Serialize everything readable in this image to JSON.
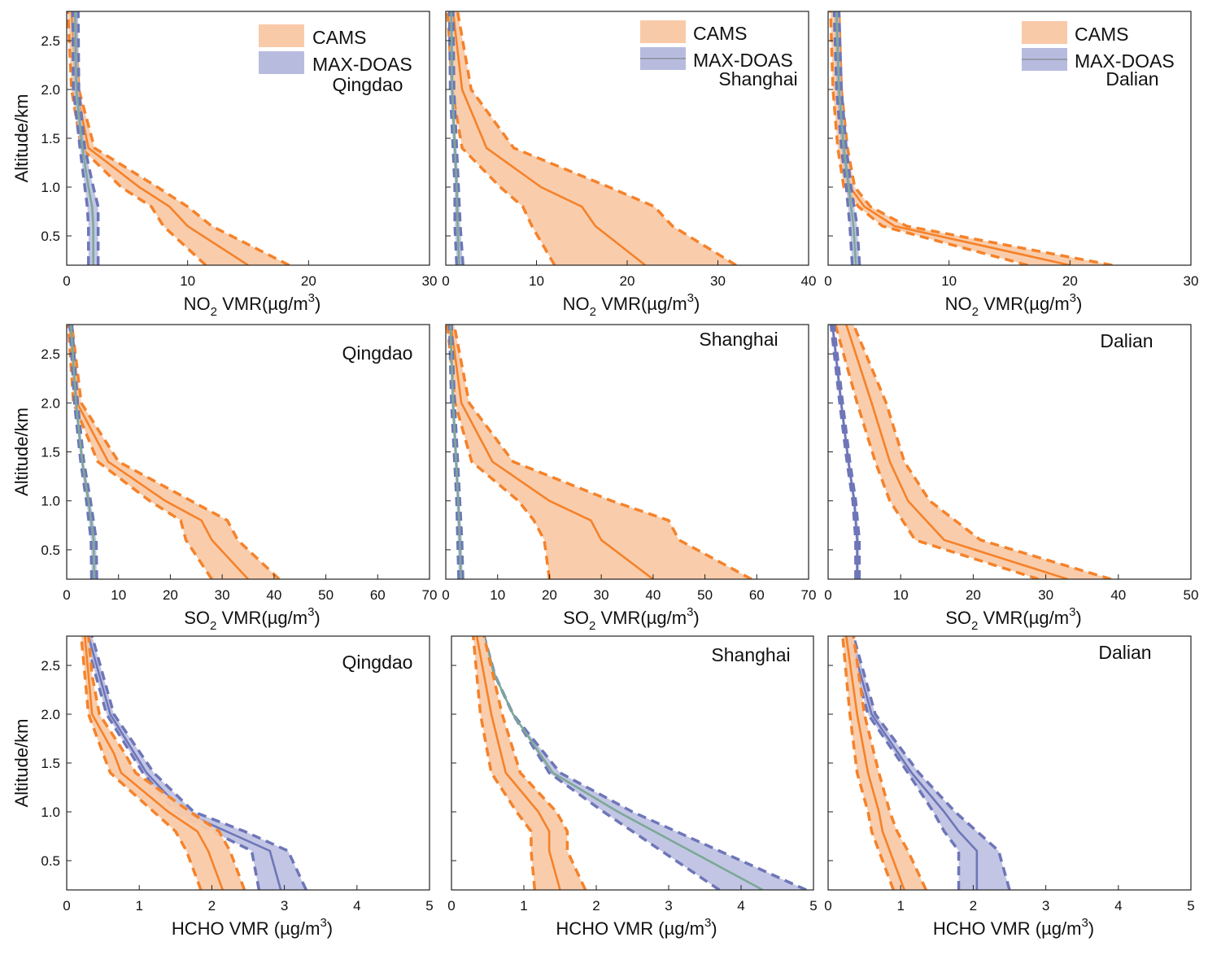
{
  "colors": {
    "cams_line": "#f5822a",
    "cams_fill": "#f9caa8",
    "maxdoas_line": "#6e76b8",
    "maxdoas_fill": "#b7bcdf",
    "maxdoas_center_shanghai": "#7da898",
    "axis": "#222222"
  },
  "legend": {
    "cams": "CAMS",
    "maxdoas": "MAX-DOAS"
  },
  "y_axis": {
    "label": "Altitude/km",
    "ticks": [
      "0.5",
      "1.0",
      "1.5",
      "2.0",
      "2.5"
    ],
    "ylim": [
      0.2,
      2.8
    ]
  },
  "x_titles": {
    "no2": {
      "main": "NO",
      "sub": "2",
      "rest": " VMR(µg/m",
      "sup": "3",
      "close": ")"
    },
    "so2": {
      "main": "SO",
      "sub": "2",
      "rest": " VMR(µg/m",
      "sup": "3",
      "close": ")"
    },
    "hcho": {
      "main": "HCHO VMR (µg/m",
      "sup": "3",
      "close": ")"
    }
  },
  "chart_data": [
    {
      "type": "line",
      "species": "NO2",
      "city": "Qingdao",
      "xlim": [
        0,
        30
      ],
      "xticks": [
        "0",
        "10",
        "20",
        "30"
      ],
      "series": [
        {
          "name": "CAMS",
          "altitude": [
            0.2,
            0.6,
            0.8,
            1.0,
            1.4,
            2.0,
            2.8
          ],
          "mean": [
            15,
            10,
            8.5,
            6,
            1.8,
            0.8,
            0.4
          ],
          "lower": [
            11.5,
            8.0,
            7.0,
            4.5,
            1.2,
            0.4,
            0.1
          ],
          "upper": [
            18.4,
            12.0,
            10.0,
            7.5,
            2.3,
            1.0,
            0.7
          ]
        },
        {
          "name": "MAX-DOAS",
          "altitude": [
            0.2,
            0.6,
            0.8,
            1.0,
            1.4,
            2.0,
            2.8
          ],
          "mean": [
            2.2,
            2.2,
            2.1,
            1.8,
            1.3,
            0.8,
            0.7
          ],
          "lower": [
            1.8,
            1.8,
            1.7,
            1.5,
            1.1,
            0.55,
            0.5
          ],
          "upper": [
            2.6,
            2.6,
            2.6,
            2.2,
            1.5,
            1.0,
            0.95
          ]
        }
      ]
    },
    {
      "type": "line",
      "species": "NO2",
      "city": "Shanghai",
      "xlim": [
        0,
        40
      ],
      "xticks": [
        "0",
        "10",
        "20",
        "30",
        "40"
      ],
      "series": [
        {
          "name": "CAMS",
          "altitude": [
            0.2,
            0.6,
            0.8,
            1.0,
            1.4,
            2.0,
            2.8
          ],
          "mean": [
            22,
            16.5,
            15,
            10.5,
            4.5,
            1.8,
            0.8
          ],
          "lower": [
            12,
            9.5,
            8.5,
            6,
            1.8,
            0.7,
            0.2
          ],
          "upper": [
            32,
            25,
            23,
            18,
            7.5,
            2.8,
            1.3
          ]
        },
        {
          "name": "MAX-DOAS",
          "altitude": [
            0.2,
            0.6,
            1.0,
            1.4,
            2.0,
            2.8
          ],
          "mean": [
            1.5,
            1.3,
            1.2,
            1.0,
            0.7,
            0.6
          ],
          "lower": [
            1.2,
            1.0,
            1.0,
            0.8,
            0.5,
            0.4
          ],
          "upper": [
            1.9,
            1.6,
            1.4,
            1.2,
            0.9,
            0.8
          ]
        }
      ]
    },
    {
      "type": "line",
      "species": "NO2",
      "city": "Dalian",
      "xlim": [
        0,
        30
      ],
      "xticks": [
        "0",
        "10",
        "20",
        "30"
      ],
      "series": [
        {
          "name": "CAMS",
          "altitude": [
            0.2,
            0.6,
            0.8,
            1.0,
            1.4,
            2.0,
            2.8
          ],
          "mean": [
            20,
            5.5,
            3.0,
            1.8,
            1.2,
            0.8,
            0.6
          ],
          "lower": [
            16.5,
            4.5,
            2.5,
            1.3,
            0.8,
            0.4,
            0.2
          ],
          "upper": [
            23.5,
            6.5,
            3.5,
            2.2,
            1.6,
            1.1,
            0.9
          ]
        },
        {
          "name": "MAX-DOAS",
          "altitude": [
            0.2,
            0.6,
            1.0,
            1.4,
            2.0,
            2.8
          ],
          "mean": [
            2.3,
            2.1,
            1.7,
            1.3,
            0.9,
            0.7
          ],
          "lower": [
            2.0,
            1.8,
            1.5,
            1.1,
            0.7,
            0.5
          ],
          "upper": [
            2.6,
            2.4,
            1.9,
            1.5,
            1.1,
            0.9
          ]
        }
      ]
    },
    {
      "type": "line",
      "species": "SO2",
      "city": "Qingdao",
      "xlim": [
        0,
        70
      ],
      "xticks": [
        "0",
        "10",
        "20",
        "30",
        "40",
        "50",
        "60",
        "70"
      ],
      "series": [
        {
          "name": "CAMS",
          "altitude": [
            0.2,
            0.6,
            0.8,
            1.0,
            1.4,
            2.0,
            2.8
          ],
          "mean": [
            35,
            28,
            26,
            19,
            8,
            2.0,
            0.6
          ],
          "lower": [
            28,
            23,
            22,
            16,
            6,
            1.3,
            0.3
          ],
          "upper": [
            41,
            33,
            31,
            24,
            10,
            2.8,
            1.0
          ]
        },
        {
          "name": "MAX-DOAS",
          "altitude": [
            0.2,
            0.6,
            1.0,
            1.4,
            2.0,
            2.8
          ],
          "mean": [
            5.3,
            5.2,
            4.2,
            3.0,
            1.8,
            0.8
          ],
          "lower": [
            4.8,
            4.7,
            3.8,
            2.7,
            1.5,
            0.6
          ],
          "upper": [
            5.8,
            5.7,
            4.6,
            3.3,
            2.1,
            1.0
          ]
        }
      ]
    },
    {
      "type": "line",
      "species": "SO2",
      "city": "Shanghai",
      "xlim": [
        0,
        70
      ],
      "xticks": [
        "0",
        "10",
        "20",
        "30",
        "40",
        "50",
        "60",
        "70"
      ],
      "series": [
        {
          "name": "CAMS",
          "altitude": [
            0.2,
            0.6,
            0.8,
            1.0,
            1.4,
            2.0,
            2.8
          ],
          "mean": [
            40,
            30,
            28,
            20,
            9,
            3.0,
            1.0
          ],
          "lower": [
            20,
            19,
            17,
            14,
            5,
            1.8,
            0.3
          ],
          "upper": [
            59,
            45,
            43,
            32,
            13,
            4.5,
            1.6
          ]
        },
        {
          "name": "MAX-DOAS",
          "altitude": [
            0.2,
            0.6,
            1.0,
            1.4,
            2.0,
            2.8
          ],
          "mean": [
            2.9,
            2.7,
            2.4,
            2.0,
            1.4,
            0.9
          ],
          "lower": [
            2.5,
            2.3,
            2.1,
            1.7,
            1.1,
            0.7
          ],
          "upper": [
            3.3,
            3.1,
            2.7,
            2.3,
            1.7,
            1.1
          ]
        }
      ]
    },
    {
      "type": "line",
      "species": "SO2",
      "city": "Dalian",
      "xlim": [
        0,
        50
      ],
      "xticks": [
        "0",
        "10",
        "20",
        "30",
        "40",
        "50"
      ],
      "series": [
        {
          "name": "CAMS",
          "altitude": [
            0.2,
            0.6,
            1.0,
            1.4,
            2.0,
            2.8
          ],
          "mean": [
            33,
            16,
            11,
            8.5,
            6,
            2.5
          ],
          "lower": [
            29,
            12,
            8.5,
            6.5,
            4.0,
            1.0
          ],
          "upper": [
            39,
            21,
            14,
            10.5,
            8.0,
            3.5
          ]
        },
        {
          "name": "MAX-DOAS",
          "altitude": [
            0.2,
            0.6,
            1.0,
            1.4,
            2.0,
            2.8
          ],
          "mean": [
            4.0,
            4.0,
            3.6,
            2.8,
            1.8,
            0.6
          ],
          "lower": [
            3.8,
            3.8,
            3.4,
            2.6,
            1.6,
            0.4
          ],
          "upper": [
            4.3,
            4.3,
            3.8,
            3.0,
            2.0,
            0.8
          ]
        }
      ]
    },
    {
      "type": "line",
      "species": "HCHO",
      "city": "Qingdao",
      "xlim": [
        0,
        5
      ],
      "xticks": [
        "0",
        "1",
        "2",
        "3",
        "4",
        "5"
      ],
      "series": [
        {
          "name": "CAMS",
          "altitude": [
            0.2,
            0.6,
            0.8,
            1.0,
            1.4,
            1.6,
            2.0,
            2.4,
            2.8
          ],
          "mean": [
            2.15,
            1.95,
            1.8,
            1.4,
            0.75,
            0.65,
            0.35,
            0.3,
            0.25
          ],
          "lower": [
            1.85,
            1.65,
            1.5,
            1.2,
            0.6,
            0.5,
            0.3,
            0.25,
            0.2
          ],
          "upper": [
            2.45,
            2.25,
            2.1,
            1.7,
            0.95,
            0.8,
            0.45,
            0.35,
            0.3
          ]
        },
        {
          "name": "MAX-DOAS",
          "altitude": [
            0.2,
            0.6,
            0.8,
            1.0,
            1.4,
            2.0,
            2.4,
            2.8
          ],
          "mean": [
            2.95,
            2.8,
            2.2,
            1.6,
            1.1,
            0.6,
            0.45,
            0.3
          ],
          "lower": [
            2.65,
            2.55,
            2.0,
            1.5,
            1.05,
            0.55,
            0.4,
            0.25
          ],
          "upper": [
            3.3,
            3.05,
            2.45,
            1.75,
            1.2,
            0.65,
            0.5,
            0.35
          ]
        }
      ]
    },
    {
      "type": "line",
      "species": "HCHO",
      "city": "Shanghai",
      "xlim": [
        0,
        5
      ],
      "xticks": [
        "0",
        "1",
        "2",
        "3",
        "4",
        "5"
      ],
      "series": [
        {
          "name": "CAMS",
          "altitude": [
            0.2,
            0.6,
            0.8,
            1.0,
            1.4,
            2.0,
            2.8
          ],
          "mean": [
            1.5,
            1.35,
            1.35,
            1.2,
            0.75,
            0.55,
            0.35
          ],
          "lower": [
            1.15,
            1.1,
            1.1,
            0.9,
            0.55,
            0.4,
            0.3
          ],
          "upper": [
            1.85,
            1.6,
            1.6,
            1.45,
            0.95,
            0.7,
            0.45
          ]
        },
        {
          "name": "MAX-DOAS",
          "altitude": [
            0.2,
            0.6,
            1.0,
            1.4,
            2.0,
            2.4,
            2.8
          ],
          "mean": [
            4.3,
            3.3,
            2.3,
            1.4,
            0.85,
            0.6,
            0.45
          ],
          "lower": [
            3.7,
            2.9,
            2.1,
            1.35,
            0.85,
            0.6,
            0.45
          ],
          "upper": [
            4.9,
            3.7,
            2.5,
            1.5,
            0.85,
            0.6,
            0.45
          ]
        }
      ]
    },
    {
      "type": "line",
      "species": "HCHO",
      "city": "Dalian",
      "xlim": [
        0,
        5
      ],
      "xticks": [
        "0",
        "1",
        "2",
        "3",
        "4",
        "5"
      ],
      "series": [
        {
          "name": "CAMS",
          "altitude": [
            0.2,
            0.6,
            0.8,
            1.0,
            1.4,
            2.0,
            2.8
          ],
          "mean": [
            1.05,
            0.85,
            0.75,
            0.7,
            0.55,
            0.4,
            0.25
          ],
          "lower": [
            0.9,
            0.7,
            0.6,
            0.55,
            0.4,
            0.3,
            0.2
          ],
          "upper": [
            1.35,
            1.1,
            0.95,
            0.85,
            0.7,
            0.5,
            0.35
          ]
        },
        {
          "name": "MAX-DOAS",
          "altitude": [
            0.2,
            0.6,
            0.8,
            1.0,
            1.4,
            2.0,
            2.4,
            2.8
          ],
          "mean": [
            2.05,
            2.05,
            1.8,
            1.6,
            1.15,
            0.6,
            0.45,
            0.3
          ],
          "lower": [
            1.8,
            1.8,
            1.6,
            1.45,
            1.1,
            0.55,
            0.4,
            0.25
          ],
          "upper": [
            2.5,
            2.35,
            2.05,
            1.75,
            1.25,
            0.65,
            0.5,
            0.35
          ]
        }
      ]
    }
  ]
}
